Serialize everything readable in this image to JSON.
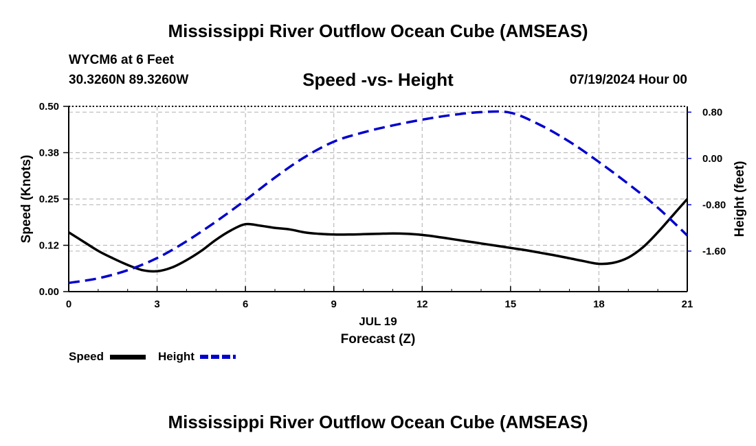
{
  "page": {
    "main_title": "Mississippi River Outflow Ocean Cube (AMSEAS)",
    "station_line": "WYCM6 at 6 Feet",
    "coords_line": "30.3260N  89.3260W",
    "date_line": "07/19/2024 Hour 00",
    "footer_title": "Mississippi River Outflow Ocean Cube (AMSEAS)"
  },
  "legend": {
    "speed_label": "Speed",
    "height_label": "Height"
  },
  "chart_data": {
    "type": "line",
    "title": "Speed -vs- Height",
    "xlabel": "Forecast (Z)",
    "x_date_label": "JUL 19",
    "ylabel_left": "Speed (Knots)",
    "ylabel_right": "Height (feet)",
    "xlim": [
      0,
      21
    ],
    "x_ticks": [
      0,
      3,
      6,
      9,
      12,
      15,
      18,
      21
    ],
    "x_tick_labels": [
      "0",
      "3",
      "6",
      "9",
      "12",
      "15",
      "18",
      "21"
    ],
    "ylim_left": [
      0,
      0.5
    ],
    "y_left_ticks": [
      0.0,
      0.125,
      0.25,
      0.375,
      0.5
    ],
    "y_left_tick_labels": [
      "0.00",
      "0.12",
      "0.25",
      "0.38",
      "0.50"
    ],
    "ylim_right": [
      -2.3,
      0.9
    ],
    "y_right_ticks": [
      -1.6,
      -0.8,
      0.0,
      0.8
    ],
    "y_right_tick_labels": [
      "-1.60",
      "-0.80",
      "0.00",
      "0.80"
    ],
    "grid": true,
    "series": [
      {
        "name": "Speed",
        "axis": "left",
        "color": "#000000",
        "style": "solid",
        "x": [
          0,
          0.5,
          1,
          1.5,
          2,
          2.5,
          3,
          3.5,
          4,
          4.5,
          5,
          5.5,
          6,
          6.5,
          7,
          7.5,
          8,
          8.5,
          9,
          9.5,
          10,
          10.5,
          11,
          11.5,
          12,
          12.5,
          13,
          13.5,
          14,
          14.5,
          15,
          15.5,
          16,
          16.5,
          17,
          17.5,
          18,
          18.5,
          19,
          19.5,
          20,
          20.5,
          21
        ],
        "values": [
          0.16,
          0.135,
          0.11,
          0.09,
          0.072,
          0.058,
          0.055,
          0.065,
          0.085,
          0.11,
          0.14,
          0.165,
          0.182,
          0.178,
          0.172,
          0.168,
          0.16,
          0.156,
          0.154,
          0.154,
          0.155,
          0.156,
          0.157,
          0.156,
          0.153,
          0.148,
          0.142,
          0.136,
          0.13,
          0.124,
          0.118,
          0.112,
          0.105,
          0.098,
          0.09,
          0.082,
          0.075,
          0.078,
          0.092,
          0.12,
          0.16,
          0.205,
          0.25
        ]
      },
      {
        "name": "Height",
        "axis": "right",
        "color": "#0000cc",
        "style": "dashed",
        "x": [
          0,
          1,
          2,
          3,
          4,
          5,
          6,
          7,
          8,
          9,
          10,
          11,
          12,
          13,
          14,
          15,
          16,
          17,
          18,
          19,
          20,
          21
        ],
        "values": [
          -2.15,
          -2.07,
          -1.93,
          -1.72,
          -1.43,
          -1.09,
          -0.72,
          -0.33,
          0.02,
          0.29,
          0.45,
          0.57,
          0.67,
          0.75,
          0.8,
          0.79,
          0.58,
          0.29,
          -0.06,
          -0.44,
          -0.85,
          -1.33
        ]
      }
    ]
  }
}
